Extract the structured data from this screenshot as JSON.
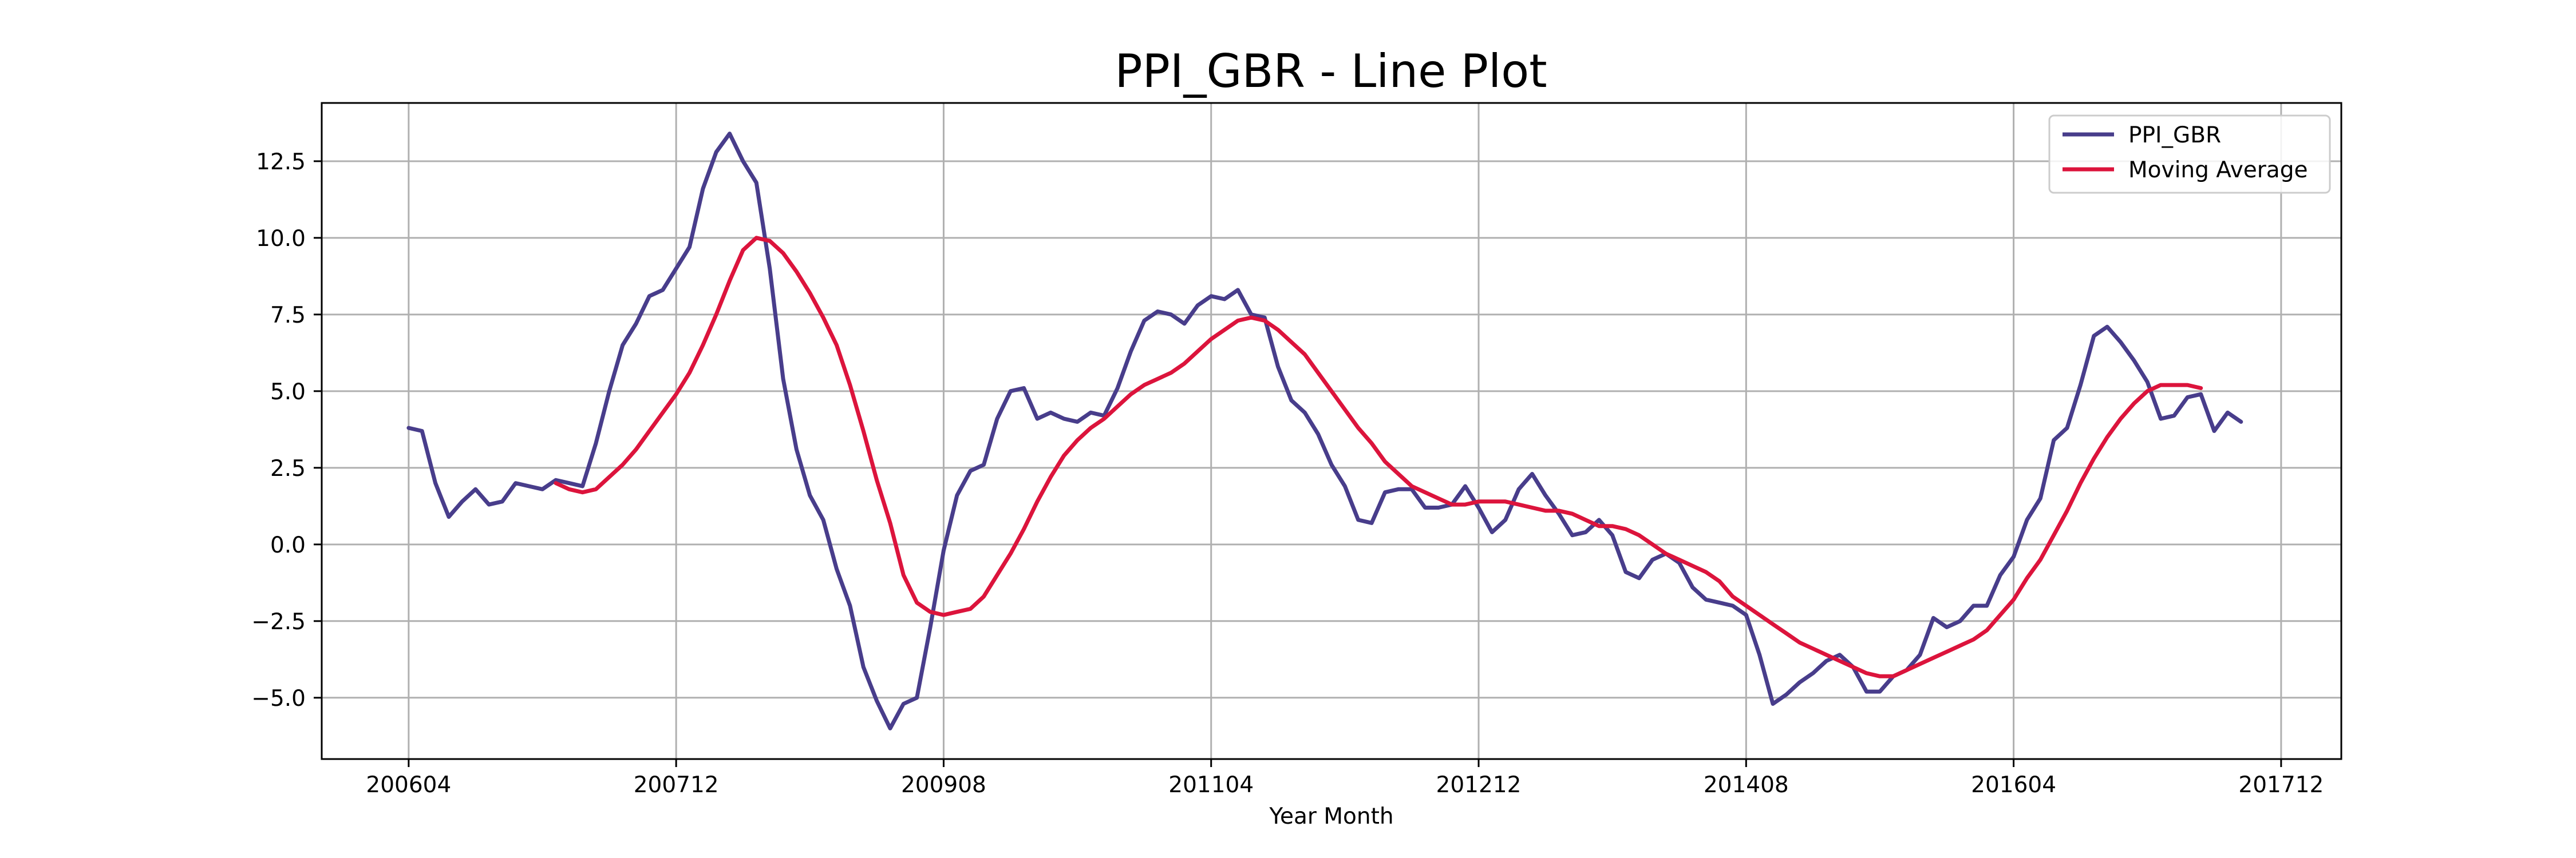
{
  "chart_data": {
    "type": "line",
    "title": "PPI_GBR - Line Plot",
    "xlabel": "Year Month",
    "ylabel": "",
    "xlim": [
      -6.5,
      144.5
    ],
    "ylim": [
      -7.0,
      14.4
    ],
    "x_ticks": [
      {
        "index": 0,
        "label": "200604"
      },
      {
        "index": 20,
        "label": "200712"
      },
      {
        "index": 40,
        "label": "200908"
      },
      {
        "index": 60,
        "label": "201104"
      },
      {
        "index": 80,
        "label": "201212"
      },
      {
        "index": 100,
        "label": "201408"
      },
      {
        "index": 120,
        "label": "201604"
      },
      {
        "index": 140,
        "label": "201712"
      }
    ],
    "y_ticks": [
      {
        "value": -5.0,
        "label": "−5.0"
      },
      {
        "value": -2.5,
        "label": "−2.5"
      },
      {
        "value": 0.0,
        "label": "0.0"
      },
      {
        "value": 2.5,
        "label": "2.5"
      },
      {
        "value": 5.0,
        "label": "5.0"
      },
      {
        "value": 7.5,
        "label": "7.5"
      },
      {
        "value": 10.0,
        "label": "10.0"
      },
      {
        "value": 12.5,
        "label": "12.5"
      }
    ],
    "grid": true,
    "legend_position": "top-right",
    "series": [
      {
        "name": "PPI_GBR",
        "color": "#483D8B",
        "start_index": 0,
        "values": [
          3.8,
          3.7,
          2.0,
          0.9,
          1.4,
          1.8,
          1.3,
          1.4,
          2.0,
          1.9,
          1.8,
          2.1,
          2.0,
          1.9,
          3.3,
          5.0,
          6.5,
          7.2,
          8.1,
          8.3,
          9.0,
          9.7,
          11.6,
          12.8,
          13.4,
          12.5,
          11.8,
          9.0,
          5.4,
          3.1,
          1.6,
          0.8,
          -0.8,
          -2.0,
          -4.0,
          -5.1,
          -6.0,
          -5.2,
          -5.0,
          -2.7,
          -0.2,
          1.6,
          2.4,
          2.6,
          4.1,
          5.0,
          5.1,
          4.1,
          4.3,
          4.1,
          4.0,
          4.3,
          4.2,
          5.1,
          6.3,
          7.3,
          7.6,
          7.5,
          7.2,
          7.8,
          8.1,
          8.0,
          8.3,
          7.5,
          7.4,
          5.8,
          4.7,
          4.3,
          3.6,
          2.6,
          1.9,
          0.8,
          0.7,
          1.7,
          1.8,
          1.8,
          1.2,
          1.2,
          1.3,
          1.9,
          1.2,
          0.4,
          0.8,
          1.8,
          2.3,
          1.6,
          1.0,
          0.3,
          0.4,
          0.8,
          0.3,
          -0.9,
          -1.1,
          -0.5,
          -0.3,
          -0.6,
          -1.4,
          -1.8,
          -1.9,
          -2.0,
          -2.3,
          -3.6,
          -5.2,
          -4.9,
          -4.5,
          -4.2,
          -3.8,
          -3.6,
          -4.0,
          -4.8,
          -4.8,
          -4.3,
          -4.1,
          -3.6,
          -2.4,
          -2.7,
          -2.5,
          -2.0,
          -2.0,
          -1.0,
          -0.4,
          0.8,
          1.5,
          3.4,
          3.8,
          5.2,
          6.8,
          7.1,
          6.6,
          6.0,
          5.3,
          4.1,
          4.2,
          4.8,
          4.9,
          3.7,
          4.3,
          4.0
        ]
      },
      {
        "name": "Moving Average",
        "color": "#DC143C",
        "start_index": 11,
        "values": [
          2.0,
          1.8,
          1.7,
          1.8,
          2.2,
          2.6,
          3.1,
          3.7,
          4.3,
          4.9,
          5.6,
          6.5,
          7.5,
          8.6,
          9.6,
          10.0,
          9.9,
          9.5,
          8.9,
          8.2,
          7.4,
          6.5,
          5.2,
          3.7,
          2.1,
          0.7,
          -1.0,
          -1.9,
          -2.2,
          -2.3,
          -2.2,
          -2.1,
          -1.7,
          -1.0,
          -0.3,
          0.5,
          1.4,
          2.2,
          2.9,
          3.4,
          3.8,
          4.1,
          4.5,
          4.9,
          5.2,
          5.4,
          5.6,
          5.9,
          6.3,
          6.7,
          7.0,
          7.3,
          7.4,
          7.3,
          7.0,
          6.6,
          6.2,
          5.6,
          5.0,
          4.4,
          3.8,
          3.3,
          2.7,
          2.3,
          1.9,
          1.7,
          1.5,
          1.3,
          1.3,
          1.4,
          1.4,
          1.4,
          1.3,
          1.2,
          1.1,
          1.1,
          1.0,
          0.8,
          0.6,
          0.6,
          0.5,
          0.3,
          0.0,
          -0.3,
          -0.5,
          -0.7,
          -0.9,
          -1.2,
          -1.7,
          -2.0,
          -2.3,
          -2.6,
          -2.9,
          -3.2,
          -3.4,
          -3.6,
          -3.8,
          -4.0,
          -4.2,
          -4.3,
          -4.3,
          -4.1,
          -3.9,
          -3.7,
          -3.5,
          -3.3,
          -3.1,
          -2.8,
          -2.3,
          -1.8,
          -1.1,
          -0.5,
          0.3,
          1.1,
          2.0,
          2.8,
          3.5,
          4.1,
          4.6,
          5.0,
          5.2,
          5.2,
          5.2,
          5.1
        ]
      }
    ]
  }
}
